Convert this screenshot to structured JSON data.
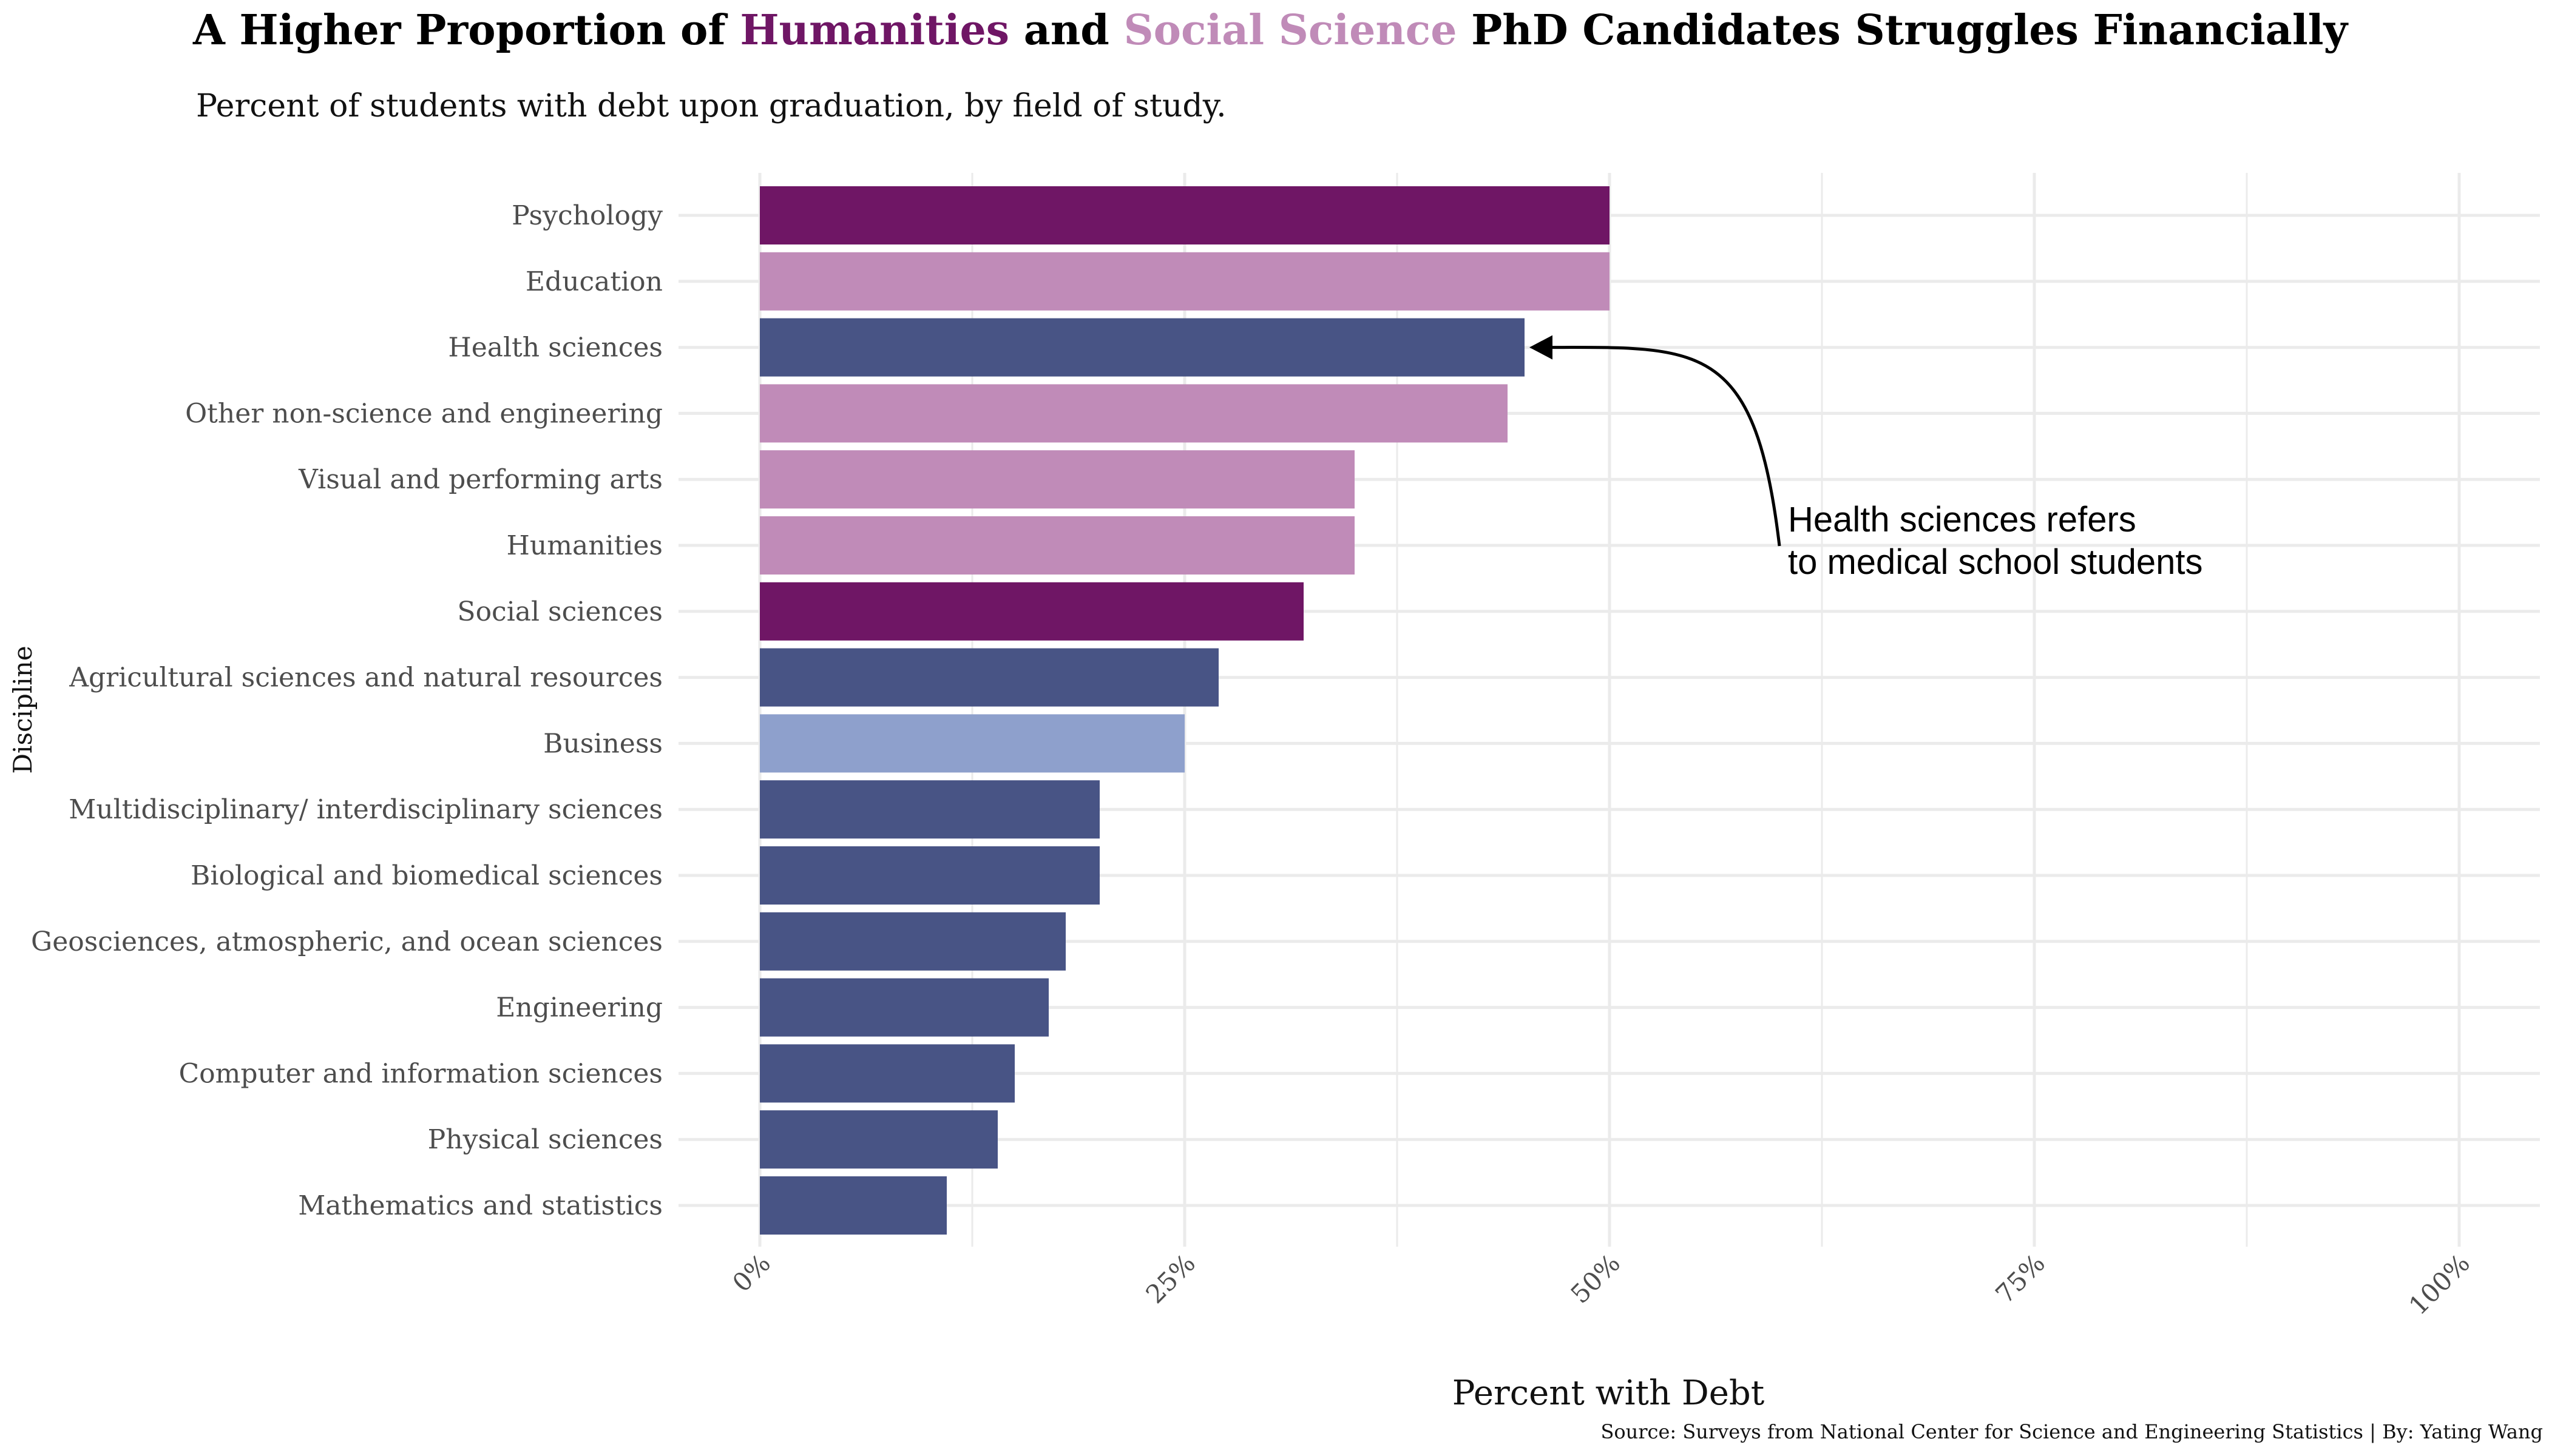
{
  "title": {
    "part1": "A Higher Proportion of ",
    "humanities": "Humanities",
    "part2": " and ",
    "social": "Social Science",
    "part3": " PhD Candidates Struggles Financially"
  },
  "subtitle": "Percent of students with debt upon graduation, by field of study.",
  "caption": "Source: Surveys from National Center for Science and Engineering Statistics | By: Yating Wang",
  "colors": {
    "psych_social": "#6f1665",
    "humanities_group": "#c08bb8",
    "stem": "#485485",
    "business": "#8ea0cc",
    "grid": "#ebebeb",
    "text": "#4d4d4d"
  },
  "annotation": {
    "line1": "Health sciences refers",
    "line2": "to medical school students",
    "target": "Health sciences"
  },
  "chart_data": {
    "type": "bar",
    "orientation": "horizontal",
    "title": "A Higher Proportion of Humanities and Social Science PhD Candidates Struggles Financially",
    "subtitle": "Percent of students with debt upon graduation, by field of study.",
    "xlabel": "Percent with Debt",
    "ylabel": "Discipline",
    "xlim": [
      0,
      100
    ],
    "x_ticks": [
      "0%",
      "25%",
      "50%",
      "75%",
      "100%"
    ],
    "x_tick_values": [
      0,
      25,
      50,
      75,
      100
    ],
    "grid": true,
    "categories": [
      "Psychology",
      "Education",
      "Health sciences",
      "Other non-science and engineering",
      "Visual and performing arts",
      "Humanities",
      "Social sciences",
      "Agricultural sciences and natural resources",
      "Business",
      "Multidisciplinary/ interdisciplinary sciences",
      "Biological and biomedical sciences",
      "Geosciences, atmospheric, and ocean sciences",
      "Engineering",
      "Computer and information sciences",
      "Physical sciences",
      "Mathematics and statistics"
    ],
    "values": [
      50,
      50,
      45,
      44,
      35,
      35,
      32,
      27,
      25,
      20,
      20,
      18,
      17,
      15,
      14,
      11
    ],
    "bar_colors": [
      "#6f1665",
      "#c08bb8",
      "#485485",
      "#c08bb8",
      "#c08bb8",
      "#c08bb8",
      "#6f1665",
      "#485485",
      "#8ea0cc",
      "#485485",
      "#485485",
      "#485485",
      "#485485",
      "#485485",
      "#485485",
      "#485485"
    ]
  }
}
